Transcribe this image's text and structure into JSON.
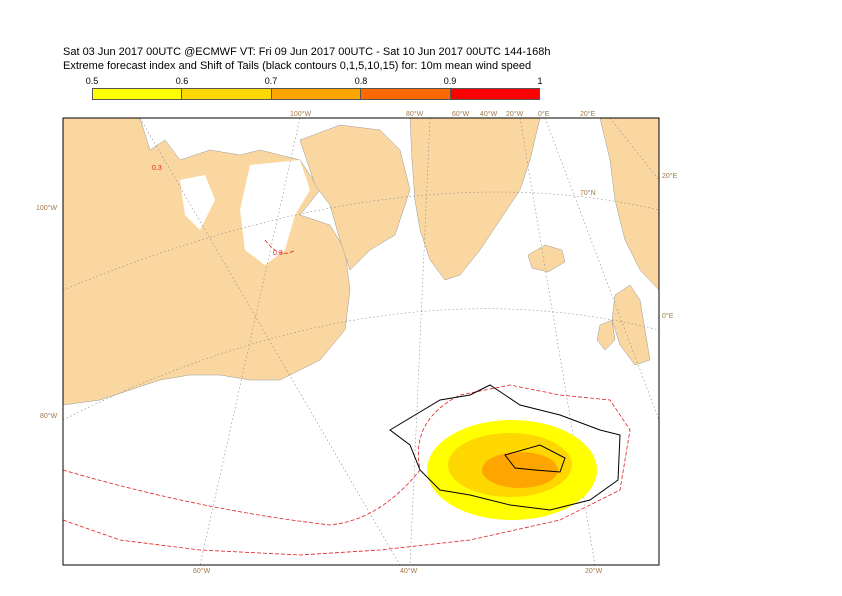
{
  "header": {
    "line1": "Sat 03 Jun 2017 00UTC @ECMWF VT: Fri 09 Jun 2017 00UTC - Sat 10 Jun 2017 00UTC  144-168h",
    "line2": "Extreme forecast index and Shift of Tails (black contours 0,1,5,10,15) for: 10m mean wind speed"
  },
  "legend": {
    "ticks": [
      "0.5",
      "0.6",
      "0.7",
      "0.8",
      "0.9",
      "1"
    ],
    "colors": [
      "#ffff00",
      "#ffd700",
      "#ffa500",
      "#ff6a00",
      "#ff0000"
    ]
  },
  "map": {
    "land_color": "#fad7a0",
    "ocean_color": "#ffffff",
    "longitude_labels_top": [
      "100°W",
      "80°W",
      "60°W",
      "40°W",
      "20°W",
      "0°E",
      "20°E"
    ],
    "longitude_labels_bottom": [
      "60°W",
      "40°W",
      "20°W"
    ],
    "side_labels_left": [
      "100°W",
      "80°W"
    ],
    "side_labels_right": [
      "20°E",
      "0°E"
    ],
    "latitude_label": "70°N",
    "contour_labels": [
      "0.3",
      "0.3"
    ]
  }
}
